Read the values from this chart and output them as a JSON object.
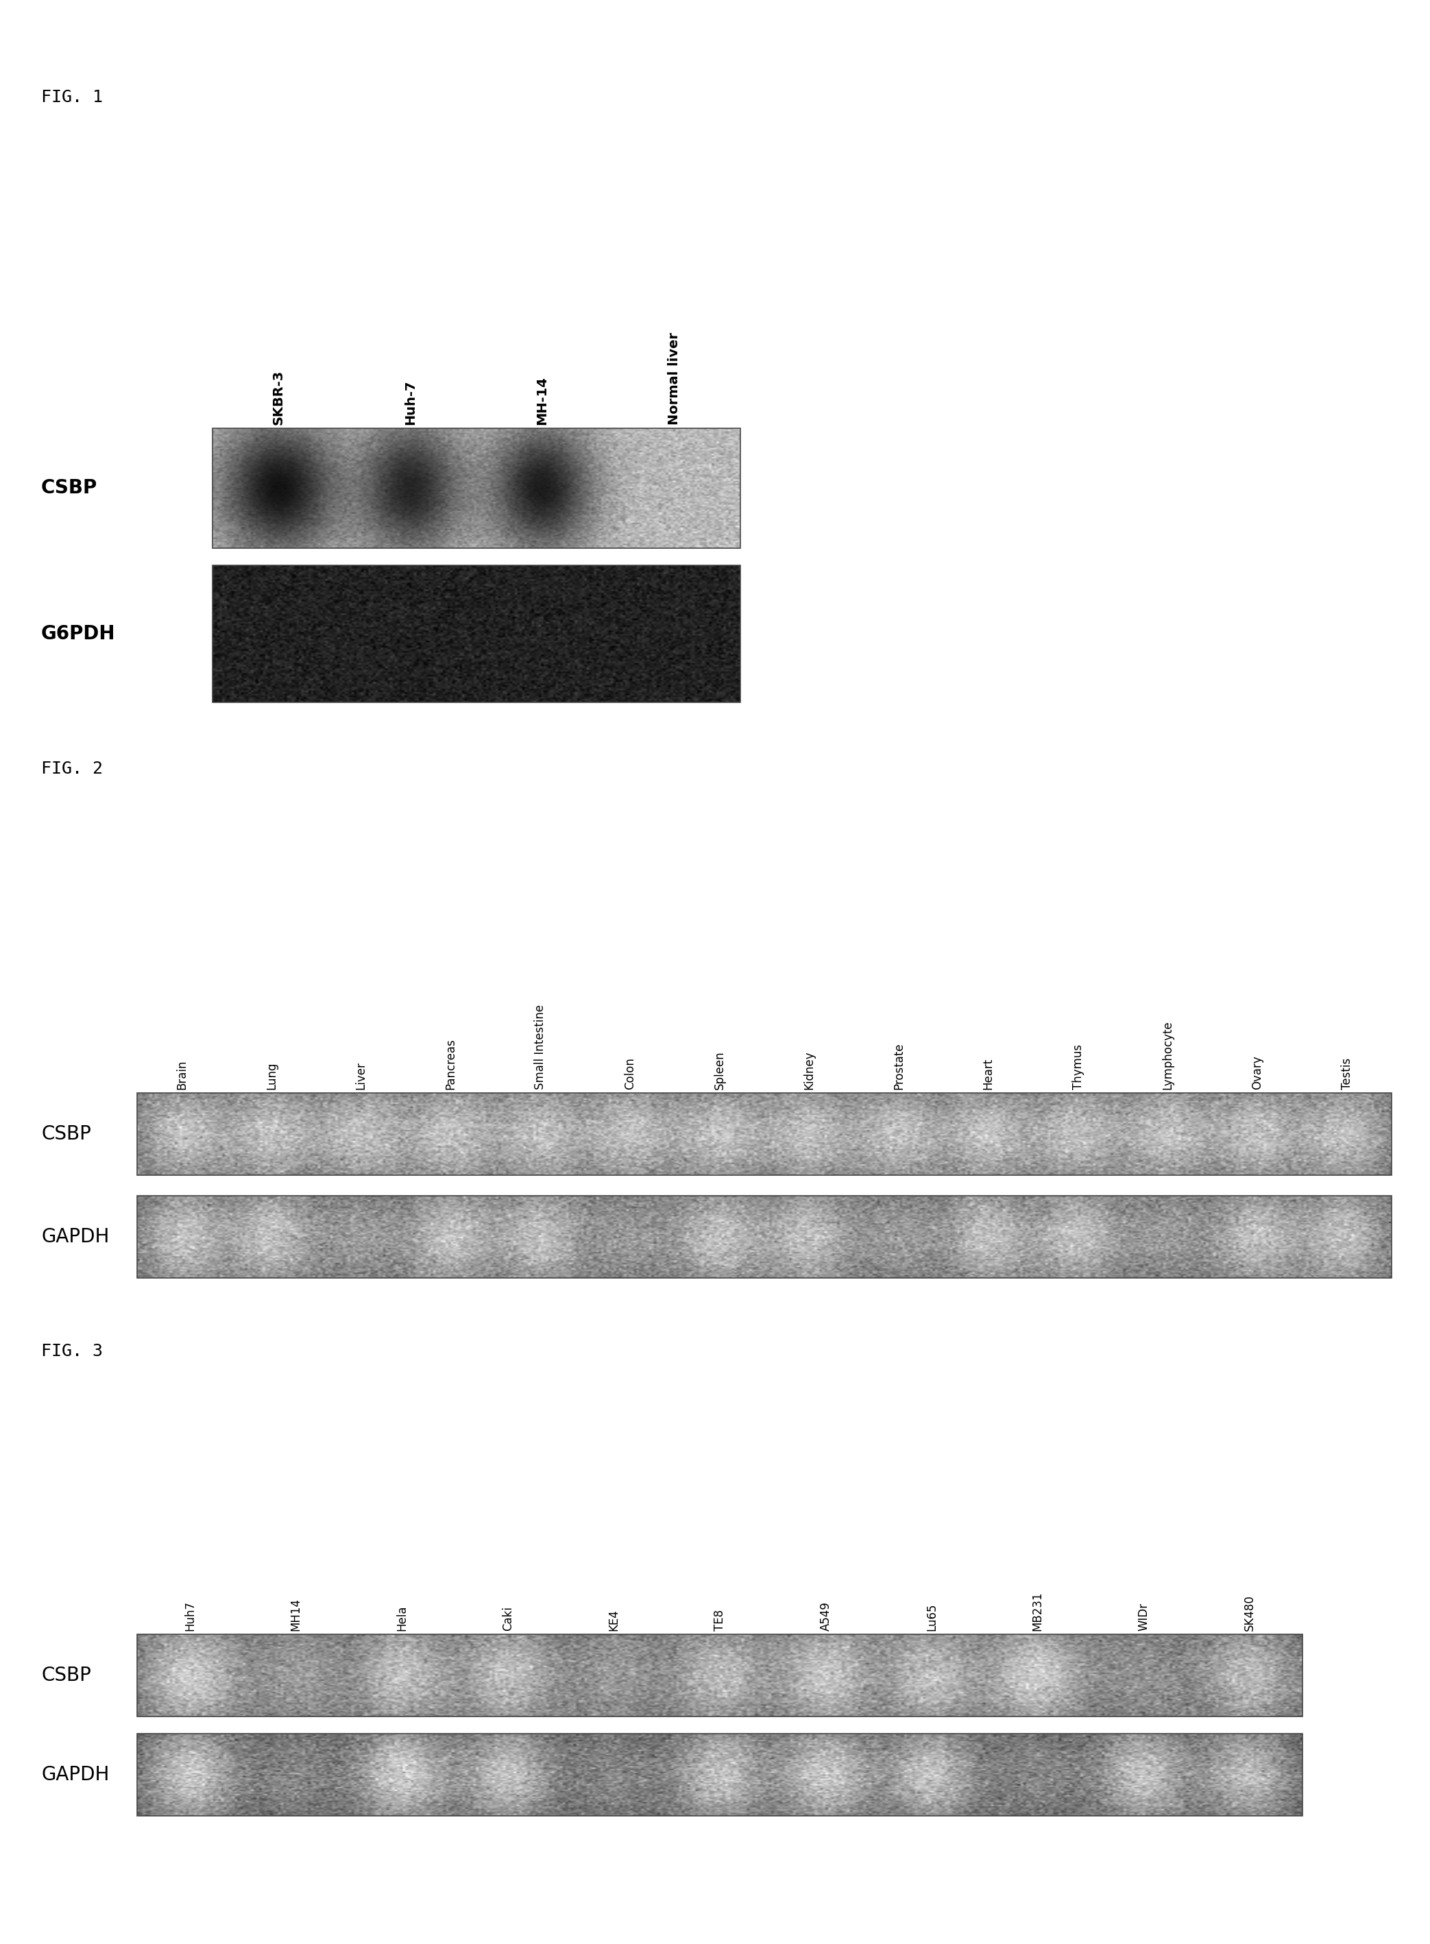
{
  "fig1_label": "FIG. 1",
  "fig2_label": "FIG. 2",
  "fig3_label": "FIG. 3",
  "fig1_cols": [
    "SKBR-3",
    "Huh-7",
    "MH-14",
    "Normal liver"
  ],
  "fig1_row_labels": [
    "CSBP",
    "G6PDH"
  ],
  "fig2_cols": [
    "Brain",
    "Lung",
    "Liver",
    "Pancreas",
    "Small Intestine",
    "Colon",
    "Spleen",
    "Kidney",
    "Prostate",
    "Heart",
    "Thymus",
    "Lymphocyte",
    "Ovary",
    "Testis"
  ],
  "fig2_row_labels": [
    "CSBP",
    "GAPDH"
  ],
  "fig3_cols": [
    "Huh7",
    "MH14",
    "Hela",
    "Caki",
    "KE4",
    "TE8",
    "A549",
    "Lu65",
    "MB231",
    "WIDr",
    "SK480"
  ],
  "fig3_row_labels": [
    "CSBP",
    "GAPDH"
  ],
  "bg_color": "#ffffff",
  "text_color": "#000000",
  "fig_label_fontsize": 18,
  "row_label_fontsize": 20,
  "col_label_fontsize": 14
}
